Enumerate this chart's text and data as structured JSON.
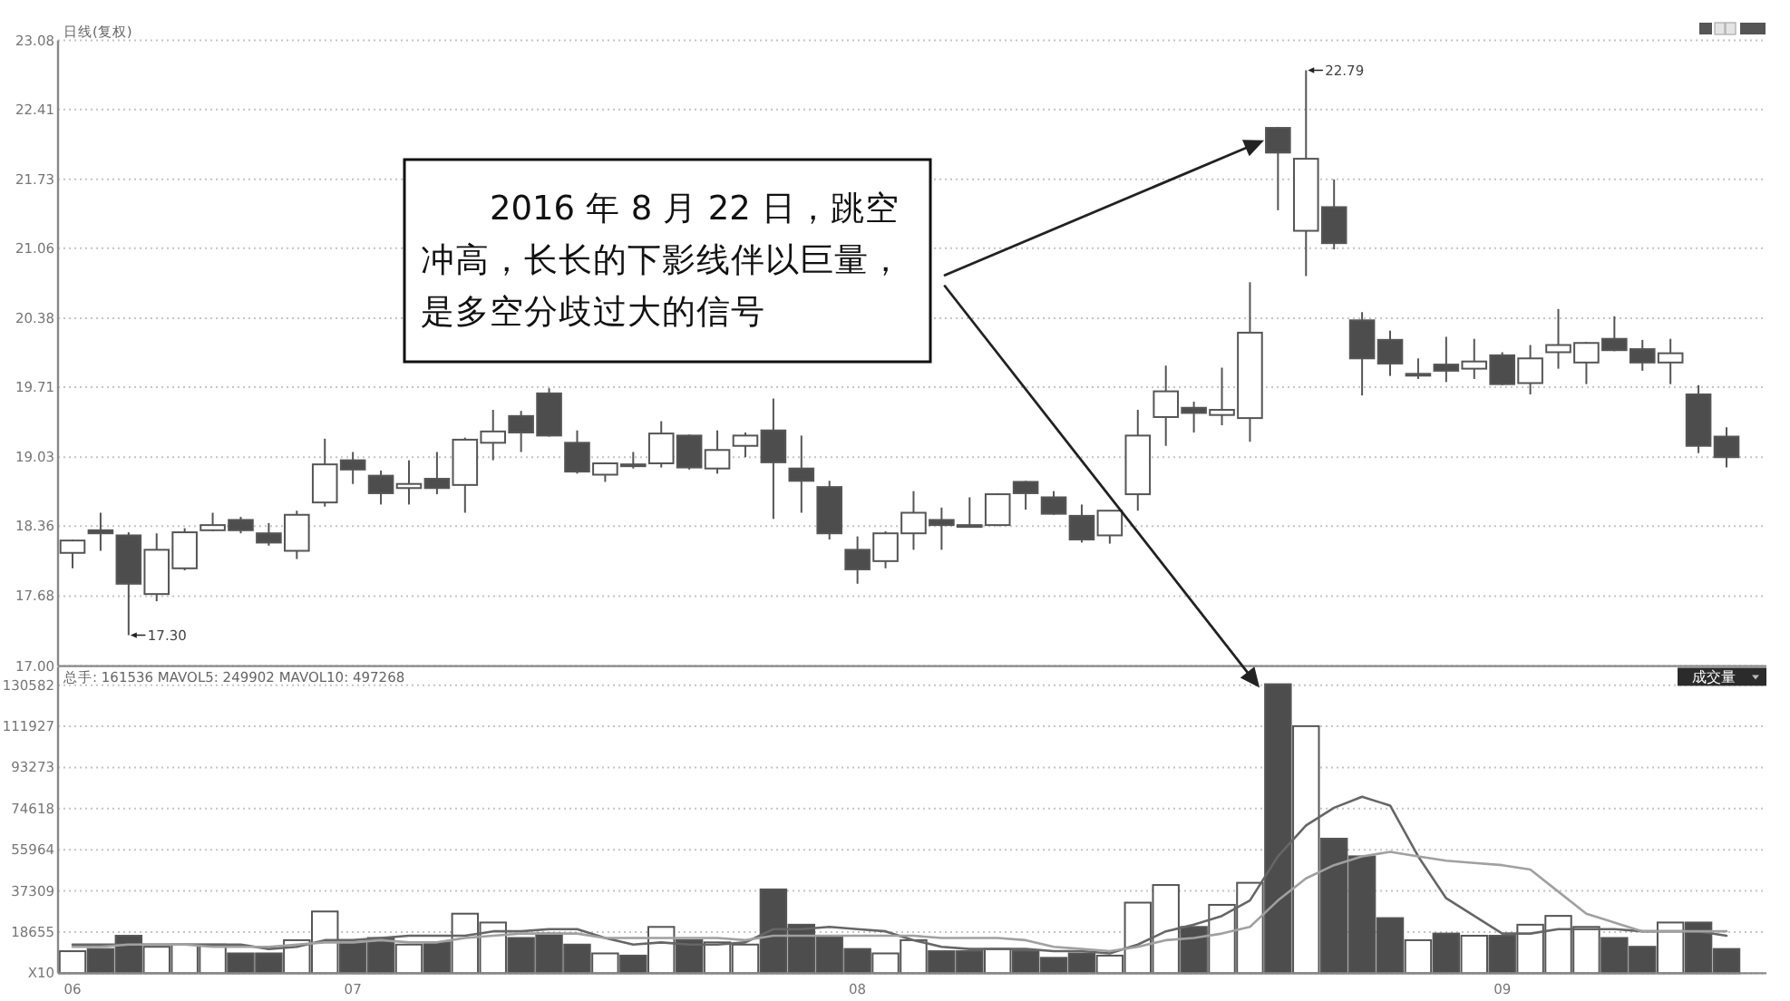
{
  "chart_data": [
    {
      "type": "candlestick",
      "title": "日线(复权)",
      "categories": [
        "06",
        null,
        null,
        null,
        null,
        null,
        null,
        null,
        null,
        null,
        "07",
        null,
        null,
        null,
        null,
        null,
        null,
        null,
        null,
        null,
        null,
        null,
        null,
        null,
        null,
        null,
        null,
        null,
        "08",
        null,
        null,
        null,
        null,
        null,
        null,
        null,
        null,
        null,
        null,
        null,
        null,
        null,
        null,
        null,
        null,
        null,
        null,
        null,
        null,
        null,
        null,
        "09",
        null,
        null,
        null,
        null,
        null,
        null,
        null,
        null
      ],
      "ohlc": [
        [
          18.1,
          18.23,
          17.95,
          18.22
        ],
        [
          18.32,
          18.49,
          18.12,
          18.29
        ],
        [
          18.27,
          18.3,
          17.3,
          17.8
        ],
        [
          17.7,
          18.29,
          17.63,
          18.13
        ],
        [
          17.95,
          18.34,
          17.93,
          18.3
        ],
        [
          18.32,
          18.49,
          18.31,
          18.37
        ],
        [
          18.42,
          18.45,
          18.29,
          18.32
        ],
        [
          18.29,
          18.39,
          18.17,
          18.2
        ],
        [
          18.12,
          18.51,
          18.04,
          18.47
        ],
        [
          18.59,
          19.21,
          18.55,
          18.96
        ],
        [
          19.0,
          19.08,
          18.77,
          18.91
        ],
        [
          18.85,
          18.9,
          18.57,
          18.68
        ],
        [
          18.73,
          19.0,
          18.57,
          18.77
        ],
        [
          18.82,
          19.08,
          18.67,
          18.73
        ],
        [
          18.76,
          19.22,
          18.49,
          19.2
        ],
        [
          19.17,
          19.49,
          19.0,
          19.28
        ],
        [
          19.43,
          19.48,
          19.08,
          19.27
        ],
        [
          19.65,
          19.7,
          19.23,
          19.24
        ],
        [
          19.17,
          19.29,
          18.87,
          18.89
        ],
        [
          18.86,
          18.98,
          18.79,
          18.97
        ],
        [
          18.96,
          19.08,
          18.92,
          18.95
        ],
        [
          18.97,
          19.38,
          18.93,
          19.26
        ],
        [
          19.24,
          19.25,
          18.91,
          18.93
        ],
        [
          18.92,
          19.29,
          18.87,
          19.1
        ],
        [
          19.14,
          19.27,
          19.03,
          19.24
        ],
        [
          19.29,
          19.6,
          18.43,
          18.98
        ],
        [
          18.92,
          19.24,
          18.49,
          18.8
        ],
        [
          18.74,
          18.8,
          18.23,
          18.29
        ],
        [
          18.13,
          18.26,
          17.8,
          17.94
        ],
        [
          18.02,
          18.31,
          17.95,
          18.29
        ],
        [
          18.29,
          18.7,
          18.13,
          18.49
        ],
        [
          18.42,
          18.54,
          18.13,
          18.37
        ],
        [
          18.37,
          18.64,
          18.35,
          18.36
        ],
        [
          18.37,
          18.68,
          18.36,
          18.67
        ],
        [
          18.79,
          18.8,
          18.52,
          18.68
        ],
        [
          18.64,
          18.7,
          18.47,
          18.48
        ],
        [
          18.46,
          18.57,
          18.2,
          18.23
        ],
        [
          18.27,
          18.51,
          18.19,
          18.51
        ],
        [
          18.67,
          19.49,
          18.51,
          19.24
        ],
        [
          19.42,
          19.92,
          19.14,
          19.67
        ],
        [
          19.51,
          19.57,
          19.27,
          19.46
        ],
        [
          19.44,
          19.9,
          19.34,
          19.49
        ],
        [
          19.41,
          20.73,
          19.18,
          20.24
        ],
        [
          22.23,
          22.24,
          21.43,
          21.99
        ],
        [
          21.23,
          22.79,
          20.79,
          21.93
        ],
        [
          21.46,
          21.73,
          21.05,
          21.11
        ],
        [
          20.36,
          20.44,
          19.63,
          19.99
        ],
        [
          20.17,
          20.26,
          19.82,
          19.94
        ],
        [
          19.83,
          19.99,
          19.79,
          19.84
        ],
        [
          19.93,
          20.2,
          19.76,
          19.87
        ],
        [
          19.89,
          20.18,
          19.79,
          19.96
        ],
        [
          20.02,
          20.05,
          19.73,
          19.74
        ],
        [
          19.75,
          20.12,
          19.64,
          19.99
        ],
        [
          20.05,
          20.47,
          19.89,
          20.12
        ],
        [
          19.95,
          20.15,
          19.74,
          20.14
        ],
        [
          20.18,
          20.4,
          20.06,
          20.07
        ],
        [
          20.08,
          20.17,
          19.87,
          19.95
        ],
        [
          19.95,
          20.18,
          19.74,
          20.04
        ],
        [
          19.64,
          19.73,
          19.07,
          19.14
        ],
        [
          19.23,
          19.32,
          18.93,
          19.03
        ]
      ],
      "colors": [
        "#ffffff",
        "#4d4d4d",
        "#4d4d4d",
        "#ffffff",
        "#ffffff",
        "#ffffff",
        "#4d4d4d",
        "#4d4d4d",
        "#ffffff",
        "#ffffff",
        "#4d4d4d",
        "#4d4d4d",
        "#ffffff",
        "#4d4d4d",
        "#ffffff",
        "#ffffff",
        "#4d4d4d",
        "#4d4d4d",
        "#4d4d4d",
        "#ffffff",
        "#4d4d4d",
        "#ffffff",
        "#4d4d4d",
        "#ffffff",
        "#ffffff",
        "#4d4d4d",
        "#4d4d4d",
        "#4d4d4d",
        "#4d4d4d",
        "#ffffff",
        "#ffffff",
        "#4d4d4d",
        "#4d4d4d",
        "#ffffff",
        "#4d4d4d",
        "#4d4d4d",
        "#4d4d4d",
        "#ffffff",
        "#ffffff",
        "#ffffff",
        "#4d4d4d",
        "#ffffff",
        "#ffffff",
        "#4d4d4d",
        "#ffffff",
        "#4d4d4d",
        "#4d4d4d",
        "#4d4d4d",
        "#ffffff",
        "#4d4d4d",
        "#ffffff",
        "#4d4d4d",
        "#ffffff",
        "#ffffff",
        "#ffffff",
        "#4d4d4d",
        "#4d4d4d",
        "#ffffff",
        "#4d4d4d",
        "#4d4d4d"
      ],
      "ylim": [
        17.0,
        23.08
      ],
      "yticks": [
        {
          "value": 17,
          "label": "17.00"
        },
        17.68,
        18.36,
        19.03,
        19.71,
        20.38,
        21.06,
        21.73,
        22.41,
        23.08
      ],
      "grid": "y",
      "tick_labels": "y",
      "annotations": [
        "17.30",
        "22.79",
        "　　2016 年 8 月 22 日，跳空冲高，长长的下影线伴以巨量，是多空分歧过大的信号"
      ]
    },
    {
      "type": "bar",
      "title": "总手: 161536 MAVOL5: 249902 MAVOL10: 497268",
      "categories": [
        "06",
        null,
        null,
        null,
        null,
        null,
        null,
        null,
        null,
        null,
        "07",
        null,
        null,
        null,
        null,
        null,
        null,
        null,
        null,
        null,
        null,
        null,
        null,
        null,
        null,
        null,
        null,
        null,
        "08",
        null,
        null,
        null,
        null,
        null,
        null,
        null,
        null,
        null,
        null,
        null,
        null,
        null,
        null,
        null,
        null,
        null,
        null,
        null,
        null,
        null,
        null,
        "09",
        null,
        null,
        null,
        null,
        null,
        null,
        null,
        null
      ],
      "series": [
        {
          "type": "bar",
          "colors": [
            "#ffffff",
            "#4d4d4d",
            "#4d4d4d",
            "#ffffff",
            "#ffffff",
            "#ffffff",
            "#4d4d4d",
            "#4d4d4d",
            "#ffffff",
            "#ffffff",
            "#4d4d4d",
            "#4d4d4d",
            "#ffffff",
            "#4d4d4d",
            "#ffffff",
            "#ffffff",
            "#4d4d4d",
            "#4d4d4d",
            "#4d4d4d",
            "#ffffff",
            "#4d4d4d",
            "#ffffff",
            "#4d4d4d",
            "#ffffff",
            "#ffffff",
            "#4d4d4d",
            "#4d4d4d",
            "#4d4d4d",
            "#4d4d4d",
            "#ffffff",
            "#ffffff",
            "#4d4d4d",
            "#4d4d4d",
            "#ffffff",
            "#4d4d4d",
            "#4d4d4d",
            "#4d4d4d",
            "#ffffff",
            "#ffffff",
            "#ffffff",
            "#4d4d4d",
            "#ffffff",
            "#ffffff",
            "#4d4d4d",
            "#ffffff",
            "#4d4d4d",
            "#4d4d4d",
            "#4d4d4d",
            "#ffffff",
            "#4d4d4d",
            "#ffffff",
            "#4d4d4d",
            "#ffffff",
            "#ffffff",
            "#ffffff",
            "#4d4d4d",
            "#4d4d4d",
            "#ffffff",
            "#4d4d4d",
            "#4d4d4d"
          ],
          "values": [
            10000,
            11000,
            17000,
            12000,
            13000,
            13000,
            9000,
            9000,
            15000,
            28000,
            14000,
            16000,
            13000,
            14000,
            27000,
            23000,
            16000,
            18000,
            13000,
            9000,
            8000,
            21000,
            15000,
            14000,
            13000,
            38000,
            22000,
            17000,
            11000,
            9000,
            15000,
            10000,
            10000,
            11000,
            10000,
            7000,
            9000,
            8000,
            32000,
            40000,
            21000,
            31000,
            41000,
            131000,
            112000,
            61000,
            53000,
            25000,
            15000,
            18000,
            17000,
            17000,
            22000,
            26000,
            21000,
            16000,
            12000,
            23000,
            23000,
            11000
          ]
        },
        {
          "type": "line",
          "color": "#666666",
          "values": [
            13000,
            13000,
            13000,
            13000,
            13000,
            13000,
            13000,
            11000,
            12000,
            15000,
            15000,
            16000,
            17000,
            17000,
            17000,
            19000,
            19000,
            20000,
            20000,
            16000,
            13000,
            14000,
            13000,
            13000,
            14000,
            20000,
            20000,
            21000,
            20000,
            19000,
            15000,
            12000,
            11000,
            11000,
            11000,
            10000,
            10000,
            9000,
            13000,
            19000,
            22000,
            26000,
            33000,
            53000,
            67000,
            75000,
            80000,
            76000,
            53000,
            34000,
            26000,
            18000,
            18000,
            20000,
            20000,
            20000,
            19000,
            19000,
            19000,
            17000
          ]
        },
        {
          "type": "line",
          "color": "#a0a0a0",
          "values": [
            12000,
            12000,
            13000,
            13000,
            13000,
            12000,
            12000,
            12000,
            13000,
            14000,
            14000,
            15000,
            14000,
            14000,
            16000,
            17000,
            18000,
            18000,
            18000,
            16000,
            16000,
            16000,
            16000,
            16000,
            15000,
            17000,
            17000,
            17000,
            17000,
            17000,
            17000,
            16000,
            16000,
            16000,
            15000,
            12000,
            11000,
            10000,
            12000,
            15000,
            16000,
            18000,
            21000,
            33000,
            43000,
            49000,
            53000,
            55000,
            53000,
            51000,
            50000,
            49000,
            47000,
            37000,
            27000,
            23000,
            19000,
            19000,
            19000,
            19000
          ]
        }
      ],
      "ylim": [
        0,
        138900
      ],
      "yticks": [
        {
          "value": 0,
          "label": "X10"
        },
        18655,
        37309,
        55964,
        74618,
        93273,
        111927,
        130582
      ],
      "grid": "y",
      "annotations": [
        "成交量"
      ]
    }
  ]
}
